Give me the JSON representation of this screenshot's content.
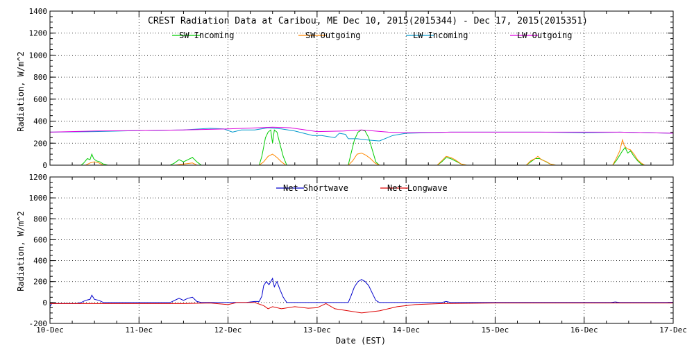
{
  "title": "CREST Radiation Data at Caribou, ME   Dec 10, 2015(2015344) - Dec 17, 2015(2015351)",
  "xlabel": "Date (EST)",
  "x_ticks": [
    "10-Dec",
    "11-Dec",
    "12-Dec",
    "13-Dec",
    "14-Dec",
    "15-Dec",
    "16-Dec",
    "17-Dec"
  ],
  "chart_data": [
    {
      "type": "line",
      "title": "CREST Radiation Data at Caribou, ME   Dec 10, 2015(2015344) - Dec 17, 2015(2015351)",
      "xlabel": "",
      "ylabel": "Radiation, W/m^2",
      "x_unit": "day offset from 10-Dec 00:00 EST",
      "xlim": [
        0,
        7
      ],
      "ylim": [
        0,
        1400
      ],
      "yticks": [
        0,
        200,
        400,
        600,
        800,
        1000,
        1200,
        1400
      ],
      "grid": true,
      "legend_placement": "top",
      "series": [
        {
          "name": "SW Incoming",
          "color": "#00cc00",
          "points": [
            [
              0,
              0
            ],
            [
              0.35,
              0
            ],
            [
              0.38,
              20
            ],
            [
              0.42,
              60
            ],
            [
              0.45,
              50
            ],
            [
              0.47,
              100
            ],
            [
              0.49,
              60
            ],
            [
              0.52,
              40
            ],
            [
              0.56,
              30
            ],
            [
              0.6,
              10
            ],
            [
              0.65,
              0
            ],
            [
              1.35,
              0
            ],
            [
              1.4,
              20
            ],
            [
              1.45,
              50
            ],
            [
              1.5,
              30
            ],
            [
              1.55,
              50
            ],
            [
              1.6,
              70
            ],
            [
              1.65,
              30
            ],
            [
              1.7,
              0
            ],
            [
              2.35,
              0
            ],
            [
              2.38,
              80
            ],
            [
              2.42,
              250
            ],
            [
              2.45,
              300
            ],
            [
              2.48,
              320
            ],
            [
              2.5,
              200
            ],
            [
              2.52,
              320
            ],
            [
              2.55,
              300
            ],
            [
              2.58,
              200
            ],
            [
              2.62,
              80
            ],
            [
              2.66,
              0
            ],
            [
              3.35,
              0
            ],
            [
              3.38,
              100
            ],
            [
              3.42,
              230
            ],
            [
              3.46,
              300
            ],
            [
              3.5,
              320
            ],
            [
              3.54,
              310
            ],
            [
              3.58,
              250
            ],
            [
              3.62,
              140
            ],
            [
              3.66,
              30
            ],
            [
              3.7,
              0
            ],
            [
              4.35,
              0
            ],
            [
              4.4,
              30
            ],
            [
              4.45,
              70
            ],
            [
              4.5,
              60
            ],
            [
              4.55,
              40
            ],
            [
              4.62,
              10
            ],
            [
              4.68,
              0
            ],
            [
              5.35,
              0
            ],
            [
              5.4,
              30
            ],
            [
              5.45,
              60
            ],
            [
              5.5,
              60
            ],
            [
              5.55,
              40
            ],
            [
              5.62,
              10
            ],
            [
              5.68,
              0
            ],
            [
              6.32,
              0
            ],
            [
              6.36,
              40
            ],
            [
              6.4,
              90
            ],
            [
              6.43,
              130
            ],
            [
              6.46,
              160
            ],
            [
              6.49,
              110
            ],
            [
              6.52,
              130
            ],
            [
              6.56,
              80
            ],
            [
              6.6,
              40
            ],
            [
              6.64,
              10
            ],
            [
              6.68,
              0
            ],
            [
              7,
              0
            ]
          ]
        },
        {
          "name": "SW Outgoing",
          "color": "#ff8800",
          "points": [
            [
              0,
              0
            ],
            [
              0.4,
              0
            ],
            [
              0.45,
              20
            ],
            [
              0.5,
              30
            ],
            [
              0.55,
              20
            ],
            [
              0.6,
              0
            ],
            [
              1.4,
              0
            ],
            [
              1.5,
              10
            ],
            [
              1.6,
              20
            ],
            [
              1.65,
              0
            ],
            [
              2.35,
              0
            ],
            [
              2.4,
              30
            ],
            [
              2.45,
              80
            ],
            [
              2.5,
              100
            ],
            [
              2.55,
              70
            ],
            [
              2.6,
              30
            ],
            [
              2.65,
              0
            ],
            [
              3.35,
              0
            ],
            [
              3.4,
              40
            ],
            [
              3.45,
              100
            ],
            [
              3.5,
              110
            ],
            [
              3.55,
              90
            ],
            [
              3.6,
              60
            ],
            [
              3.65,
              20
            ],
            [
              3.7,
              0
            ],
            [
              4.35,
              0
            ],
            [
              4.4,
              40
            ],
            [
              4.45,
              80
            ],
            [
              4.5,
              70
            ],
            [
              4.55,
              50
            ],
            [
              4.62,
              10
            ],
            [
              4.68,
              0
            ],
            [
              5.35,
              0
            ],
            [
              5.4,
              40
            ],
            [
              5.45,
              60
            ],
            [
              5.48,
              80
            ],
            [
              5.52,
              50
            ],
            [
              5.58,
              30
            ],
            [
              5.62,
              10
            ],
            [
              5.68,
              0
            ],
            [
              6.32,
              0
            ],
            [
              6.36,
              60
            ],
            [
              6.4,
              130
            ],
            [
              6.43,
              230
            ],
            [
              6.45,
              180
            ],
            [
              6.48,
              150
            ],
            [
              6.52,
              140
            ],
            [
              6.56,
              100
            ],
            [
              6.6,
              50
            ],
            [
              6.64,
              20
            ],
            [
              6.68,
              0
            ],
            [
              7,
              0
            ]
          ]
        },
        {
          "name": "LW Incoming",
          "color": "#0099cc",
          "points": [
            [
              0,
              300
            ],
            [
              0.5,
              305
            ],
            [
              1,
              315
            ],
            [
              1.5,
              320
            ],
            [
              1.8,
              335
            ],
            [
              1.95,
              330
            ],
            [
              2.05,
              300
            ],
            [
              2.15,
              320
            ],
            [
              2.3,
              320
            ],
            [
              2.45,
              340
            ],
            [
              2.6,
              330
            ],
            [
              2.75,
              310
            ],
            [
              2.95,
              270
            ],
            [
              3.05,
              270
            ],
            [
              3.2,
              250
            ],
            [
              3.25,
              290
            ],
            [
              3.32,
              280
            ],
            [
              3.35,
              240
            ],
            [
              3.45,
              240
            ],
            [
              3.55,
              230
            ],
            [
              3.7,
              220
            ],
            [
              3.85,
              270
            ],
            [
              4,
              290
            ],
            [
              4.5,
              300
            ],
            [
              5,
              300
            ],
            [
              5.5,
              300
            ],
            [
              6,
              295
            ],
            [
              6.4,
              300
            ],
            [
              7,
              290
            ]
          ]
        },
        {
          "name": "LW Outgoing",
          "color": "#dd00dd",
          "points": [
            [
              0,
              300
            ],
            [
              0.5,
              310
            ],
            [
              1,
              315
            ],
            [
              1.5,
              320
            ],
            [
              2,
              330
            ],
            [
              2.5,
              345
            ],
            [
              2.7,
              340
            ],
            [
              3,
              305
            ],
            [
              3.3,
              310
            ],
            [
              3.5,
              320
            ],
            [
              3.8,
              300
            ],
            [
              4,
              295
            ],
            [
              4.5,
              300
            ],
            [
              5,
              300
            ],
            [
              5.5,
              300
            ],
            [
              6,
              300
            ],
            [
              6.4,
              300
            ],
            [
              7,
              290
            ]
          ]
        }
      ]
    },
    {
      "type": "line",
      "title": "",
      "xlabel": "Date (EST)",
      "ylabel": "Radiation, W/m^2",
      "x_unit": "day offset from 10-Dec 00:00 EST",
      "xlim": [
        0,
        7
      ],
      "ylim": [
        -200,
        1200
      ],
      "yticks": [
        -200,
        0,
        200,
        400,
        600,
        800,
        1000,
        1200
      ],
      "grid": true,
      "legend_placement": "top",
      "series": [
        {
          "name": "Net Shortwave",
          "color": "#0000cc",
          "points": [
            [
              0,
              -40
            ],
            [
              0.02,
              -10
            ],
            [
              0.3,
              -10
            ],
            [
              0.35,
              0
            ],
            [
              0.4,
              20
            ],
            [
              0.45,
              30
            ],
            [
              0.47,
              70
            ],
            [
              0.5,
              30
            ],
            [
              0.55,
              20
            ],
            [
              0.6,
              0
            ],
            [
              1.35,
              0
            ],
            [
              1.4,
              20
            ],
            [
              1.45,
              40
            ],
            [
              1.5,
              20
            ],
            [
              1.55,
              40
            ],
            [
              1.6,
              50
            ],
            [
              1.65,
              10
            ],
            [
              1.7,
              0
            ],
            [
              2.2,
              0
            ],
            [
              2.3,
              10
            ],
            [
              2.35,
              10
            ],
            [
              2.38,
              60
            ],
            [
              2.4,
              160
            ],
            [
              2.43,
              200
            ],
            [
              2.46,
              170
            ],
            [
              2.5,
              230
            ],
            [
              2.52,
              150
            ],
            [
              2.55,
              200
            ],
            [
              2.58,
              130
            ],
            [
              2.62,
              50
            ],
            [
              2.66,
              0
            ],
            [
              3.35,
              0
            ],
            [
              3.38,
              60
            ],
            [
              3.42,
              150
            ],
            [
              3.46,
              200
            ],
            [
              3.5,
              220
            ],
            [
              3.54,
              200
            ],
            [
              3.58,
              160
            ],
            [
              3.62,
              90
            ],
            [
              3.66,
              20
            ],
            [
              3.7,
              0
            ],
            [
              4.4,
              0
            ],
            [
              4.45,
              10
            ],
            [
              4.5,
              0
            ],
            [
              6.3,
              0
            ],
            [
              6.35,
              5
            ],
            [
              6.4,
              0
            ],
            [
              7,
              0
            ]
          ]
        },
        {
          "name": "Net Longwave",
          "color": "#dd0000",
          "points": [
            [
              0,
              -10
            ],
            [
              1.5,
              -10
            ],
            [
              1.8,
              -5
            ],
            [
              2,
              -20
            ],
            [
              2.1,
              0
            ],
            [
              2.3,
              0
            ],
            [
              2.4,
              -30
            ],
            [
              2.45,
              -60
            ],
            [
              2.5,
              -40
            ],
            [
              2.6,
              -60
            ],
            [
              2.75,
              -40
            ],
            [
              2.9,
              -55
            ],
            [
              3,
              -50
            ],
            [
              3.1,
              -10
            ],
            [
              3.2,
              -60
            ],
            [
              3.35,
              -80
            ],
            [
              3.5,
              -100
            ],
            [
              3.7,
              -80
            ],
            [
              3.9,
              -40
            ],
            [
              4.1,
              -20
            ],
            [
              4.4,
              -10
            ],
            [
              5,
              -5
            ],
            [
              5.5,
              -5
            ],
            [
              6,
              -5
            ],
            [
              7,
              -5
            ]
          ]
        }
      ]
    }
  ]
}
